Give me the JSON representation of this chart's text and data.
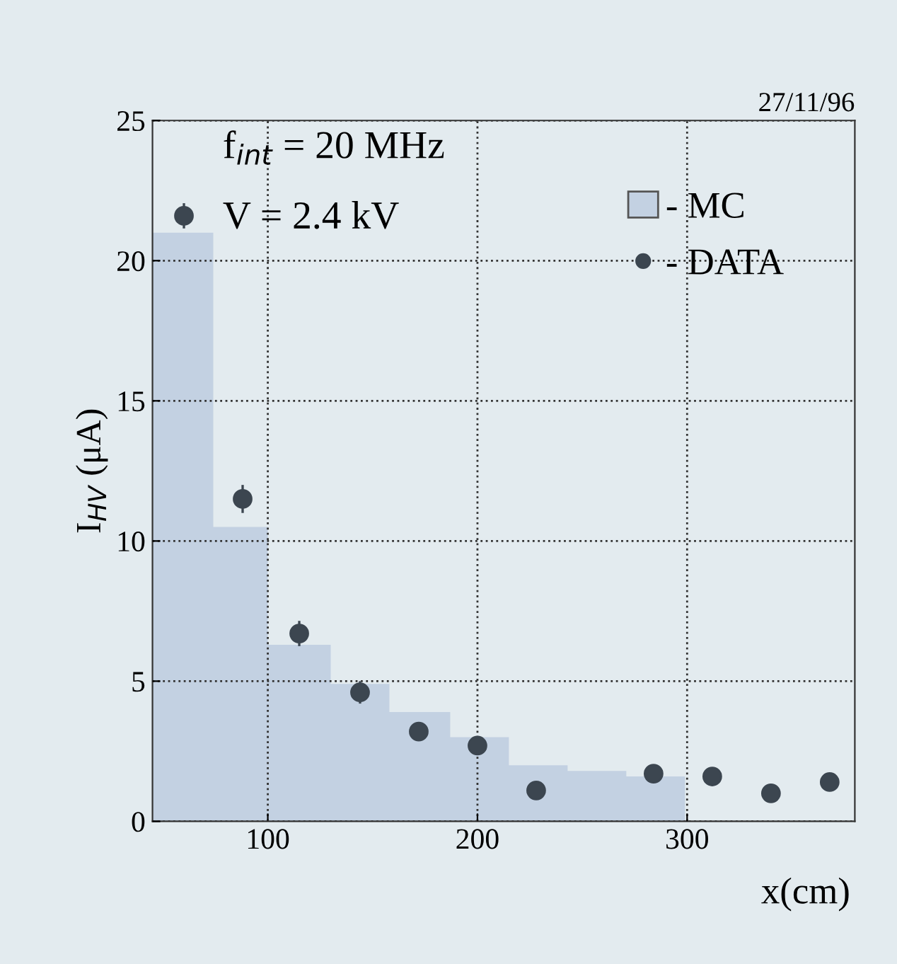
{
  "chart_data": {
    "type": "histogram",
    "xlabel": "x(cm)",
    "ylabel": "I$_{HV}$ (μA)",
    "annotations": [
      "f$_{int}$ = 20 MHz",
      "V = 2.4 kV",
      "27/11/96"
    ],
    "series": [
      {
        "name": "- MC",
        "color": "#c3d1e2",
        "bins": [
          45,
          74,
          100,
          130,
          158,
          187,
          215,
          243,
          271,
          299
        ],
        "values": [
          21.0,
          10.5,
          6.3,
          4.9,
          3.9,
          3.0,
          2.0,
          1.8,
          1.6
        ]
      },
      {
        "type": "scatter",
        "name": "- DATA",
        "color": "#3c4650",
        "x": [
          60,
          88,
          115,
          144,
          172,
          200,
          228,
          284,
          312,
          340,
          368
        ],
        "values": [
          21.6,
          11.5,
          6.7,
          4.6,
          3.2,
          2.7,
          1.1,
          1.7,
          1.6,
          1.0,
          1.4
        ],
        "errors": [
          0.45,
          0.5,
          0.45,
          0.4,
          null,
          null,
          null,
          null,
          null,
          null,
          null
        ]
      }
    ],
    "xlim": [
      45,
      380
    ],
    "ylim": [
      0,
      25
    ],
    "xticks": [
      100,
      200,
      300
    ],
    "yticks": [
      0,
      5,
      10,
      15,
      20,
      25
    ],
    "grid": true,
    "legend": "top right",
    "marker": "circle"
  }
}
